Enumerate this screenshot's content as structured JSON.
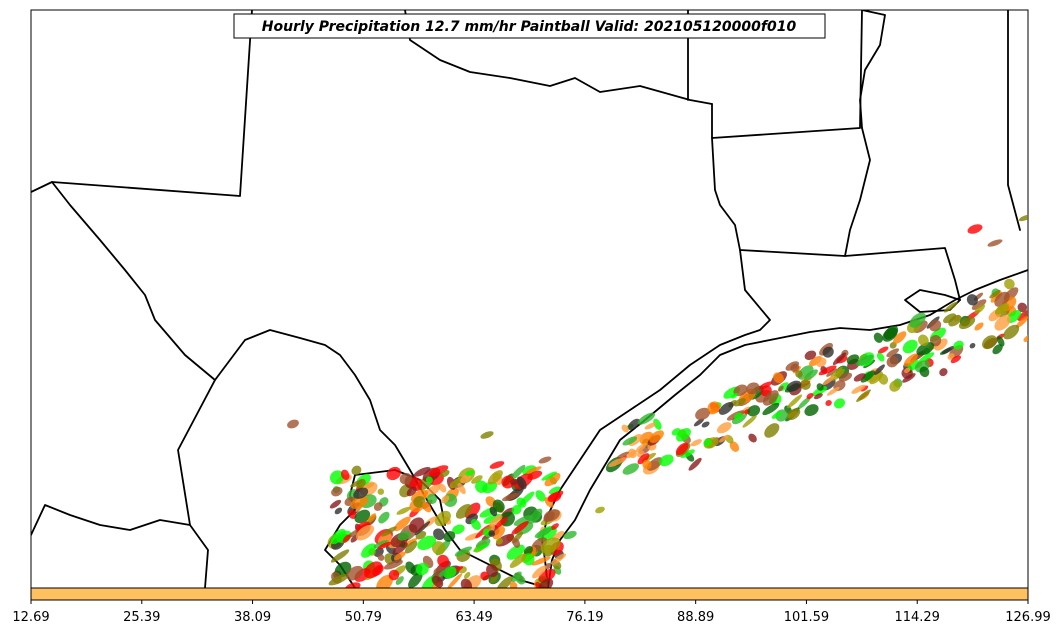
{
  "chart_data": {
    "type": "scatter",
    "title": "Hourly Precipitation 12.7 mm/hr Paintball Valid: 202105120000f010",
    "xlabel": "",
    "ylabel": "",
    "grid": false,
    "colorbar": {
      "color": "#ffc060",
      "range": [
        12.69,
        126.99
      ],
      "tick_labels": [
        "12.69",
        "25.39",
        "38.09",
        "50.79",
        "63.49",
        "76.19",
        "88.89",
        "101.59",
        "114.29",
        "126.99"
      ]
    },
    "series": [
      {
        "color": "#ff0000"
      },
      {
        "color": "#ff7f00"
      },
      {
        "color": "#ff9f40"
      },
      {
        "color": "#808000"
      },
      {
        "color": "#8b1a1a"
      },
      {
        "color": "#2db82d"
      },
      {
        "color": "#00ff00"
      },
      {
        "color": "#a0a000"
      },
      {
        "color": "#303030"
      },
      {
        "color": "#a0522d"
      },
      {
        "color": "#006400"
      }
    ]
  }
}
